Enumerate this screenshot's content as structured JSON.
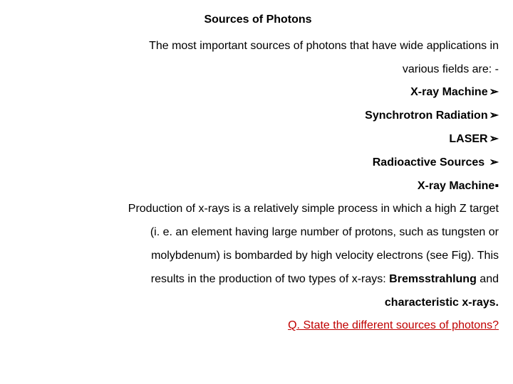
{
  "title": "Sources of Photons",
  "intro_line1": "The most important sources of photons that have wide applications in",
  "intro_line2": "various fields are: -",
  "items": {
    "i1": "X-ray Machine",
    "i2": "Synchrotron Radiation",
    "i3": "LASER",
    "i4": "Radioactive Sources "
  },
  "marker_tri": "➢",
  "marker_sq": "▪",
  "section_head": "X-ray Machine",
  "body_l1": "Production of x-rays is a relatively simple process in which a high Z target",
  "body_l2": "(i. e. an element having large number of protons, such as tungsten or",
  "body_l3": "molybdenum) is bombarded by high velocity electrons (see Fig). This",
  "body_l4_a": "results in the production of two types of x-rays: ",
  "body_l4_b": "Bremsstrahlung",
  "body_l4_c": " and",
  "body_l5": "characteristic x-rays.",
  "question": "Q. State the different sources of photons?",
  "colors": {
    "text": "#000000",
    "question": "#c00000",
    "background": "#ffffff"
  }
}
